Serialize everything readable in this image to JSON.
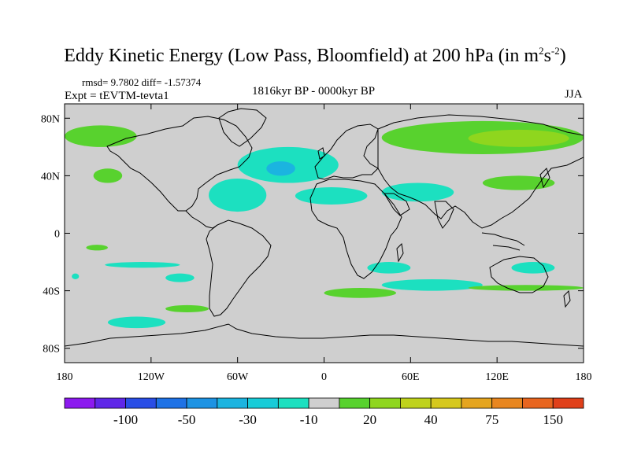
{
  "title": {
    "main": "Eddy Kinetic Energy (Low Pass, Bloomfield) at 200 hPa (in m",
    "exp1": "2",
    "mid": "s",
    "exp2": "-2",
    "close": ")"
  },
  "stats": "rmsd= 9.7802 diff= -1.57374",
  "expt": "Expt = tEVTM-tevta1",
  "period": "1816kyr BP - 0000kyr BP",
  "season": "JJA",
  "axes": {
    "y_ticks": [
      {
        "label": "80N",
        "value": 80
      },
      {
        "label": "40N",
        "value": 40
      },
      {
        "label": "0",
        "value": 0
      },
      {
        "label": "40S",
        "value": -40
      },
      {
        "label": "80S",
        "value": -80
      }
    ],
    "x_ticks": [
      {
        "label": "180",
        "value": -180
      },
      {
        "label": "120W",
        "value": -120
      },
      {
        "label": "60W",
        "value": -60
      },
      {
        "label": "0",
        "value": 0
      },
      {
        "label": "60E",
        "value": 60
      },
      {
        "label": "120E",
        "value": 120
      },
      {
        "label": "180",
        "value": 180
      }
    ],
    "lon_range": [
      -180,
      180
    ],
    "lat_range": [
      -90,
      90
    ]
  },
  "colorbar": {
    "colors": [
      "#8c1aef",
      "#5f27e8",
      "#2a4ee6",
      "#1e72e6",
      "#1d93e3",
      "#1bb4e0",
      "#18ccd8",
      "#1ce0c0",
      "#cfcfcf",
      "#58d22e",
      "#8fd61e",
      "#bfd21c",
      "#d6c81d",
      "#e5a51f",
      "#e8861f",
      "#e8651f",
      "#e0401a"
    ],
    "labels": [
      {
        "text": "-100",
        "index": 2
      },
      {
        "text": "-50",
        "index": 4
      },
      {
        "text": "-30",
        "index": 6
      },
      {
        "text": "-10",
        "index": 8
      },
      {
        "text": "20",
        "index": 10
      },
      {
        "text": "40",
        "index": 12
      },
      {
        "text": "75",
        "index": 14
      },
      {
        "text": "150",
        "index": 16
      }
    ]
  },
  "map_colors": {
    "ocean_bg": "#cfcfcf",
    "cyan": "#1ce0c0",
    "light_blue": "#18ccd8",
    "mid_blue": "#1bb4e0",
    "green": "#58d22e",
    "yellow_green": "#8fd61e",
    "coast": "#000000"
  },
  "anomalies": {
    "cyan": [
      {
        "lon": [
          -152,
          -100
        ],
        "lat": [
          -20,
          -24
        ]
      },
      {
        "lon": [
          -110,
          -90
        ],
        "lat": [
          -28,
          -34
        ]
      },
      {
        "lon": [
          -80,
          -40
        ],
        "lat": [
          15,
          38
        ]
      },
      {
        "lon": [
          -60,
          10
        ],
        "lat": [
          35,
          60
        ]
      },
      {
        "lon": [
          -20,
          30
        ],
        "lat": [
          20,
          32
        ]
      },
      {
        "lon": [
          40,
          90
        ],
        "lat": [
          22,
          35
        ]
      },
      {
        "lon": [
          40,
          110
        ],
        "lat": [
          -32,
          -40
        ]
      },
      {
        "lon": [
          -150,
          -110
        ],
        "lat": [
          -58,
          -66
        ]
      },
      {
        "lon": [
          -175,
          -170
        ],
        "lat": [
          -28,
          -32
        ]
      },
      {
        "lon": [
          30,
          60
        ],
        "lat": [
          -20,
          -28
        ]
      },
      {
        "lon": [
          130,
          160
        ],
        "lat": [
          -20,
          -28
        ]
      }
    ],
    "blue": [
      {
        "lon": [
          -40,
          -20
        ],
        "lat": [
          40,
          50
        ]
      }
    ],
    "green": [
      {
        "lon": [
          -180,
          -130
        ],
        "lat": [
          60,
          75
        ]
      },
      {
        "lon": [
          -160,
          -140
        ],
        "lat": [
          35,
          45
        ]
      },
      {
        "lon": [
          40,
          180
        ],
        "lat": [
          55,
          78
        ]
      },
      {
        "lon": [
          -110,
          -80
        ],
        "lat": [
          -50,
          -55
        ]
      },
      {
        "lon": [
          0,
          50
        ],
        "lat": [
          -38,
          -45
        ]
      },
      {
        "lon": [
          100,
          180
        ],
        "lat": [
          -36,
          -40
        ]
      },
      {
        "lon": [
          110,
          160
        ],
        "lat": [
          30,
          40
        ]
      },
      {
        "lon": [
          -165,
          -150
        ],
        "lat": [
          -8,
          -12
        ]
      }
    ],
    "yellow_green": [
      {
        "lon": [
          100,
          170
        ],
        "lat": [
          60,
          72
        ]
      }
    ]
  }
}
